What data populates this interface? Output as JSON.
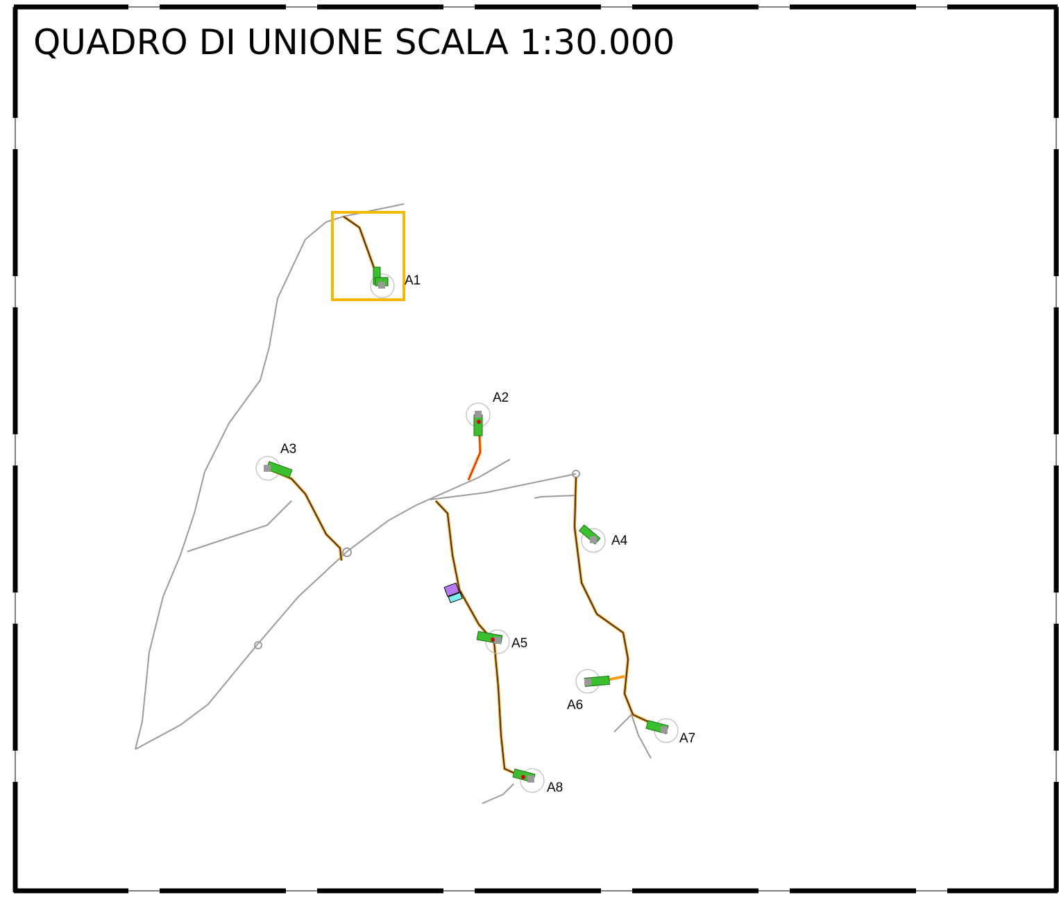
{
  "title": "QUADRO DI UNIONE SCALA 1:30.000",
  "sites": [
    {
      "label": "A1"
    },
    {
      "label": "A2"
    },
    {
      "label": "A3"
    },
    {
      "label": "A4"
    },
    {
      "label": "A5"
    },
    {
      "label": "A6"
    },
    {
      "label": "A7"
    },
    {
      "label": "A8"
    }
  ]
}
